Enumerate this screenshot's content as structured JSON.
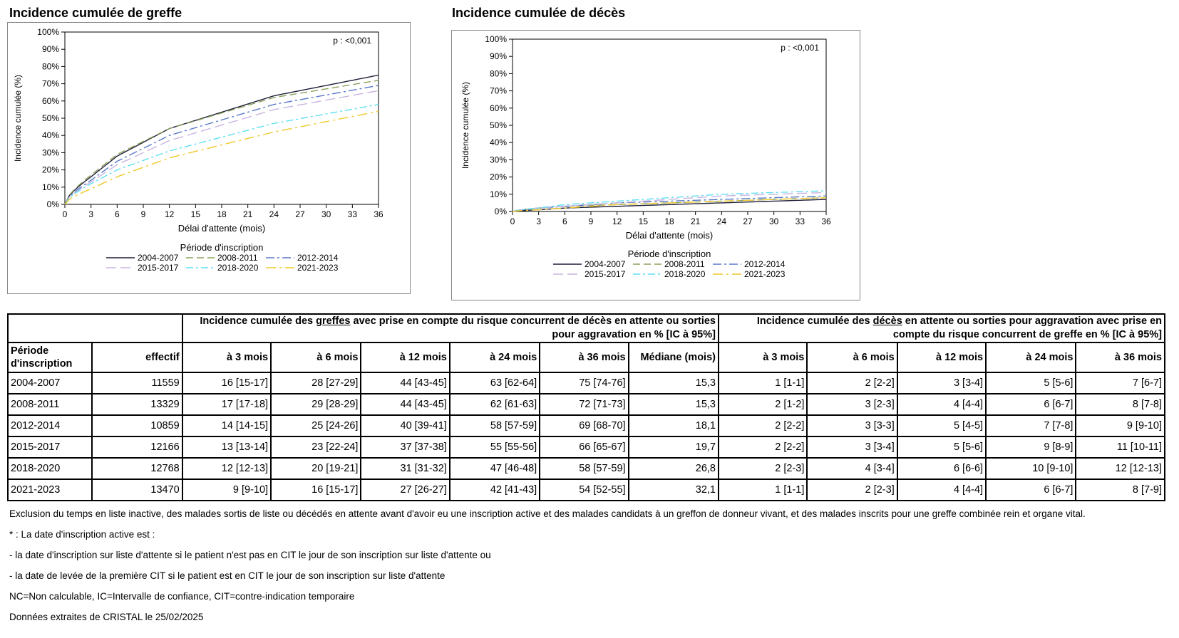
{
  "chart_data": [
    {
      "type": "line",
      "title": "Incidence cumulée de greffe",
      "xlabel": "Délai d'attente (mois)",
      "ylabel": "Incidence cumulée (%)",
      "xlim": [
        0,
        36
      ],
      "ylim": [
        0,
        100
      ],
      "x_ticks": [
        "0",
        "3",
        "6",
        "9",
        "12",
        "15",
        "18",
        "21",
        "24",
        "27",
        "30",
        "33",
        "36"
      ],
      "y_ticks": [
        "0%",
        "10%",
        "20%",
        "30%",
        "40%",
        "50%",
        "60%",
        "70%",
        "80%",
        "90%",
        "100%"
      ],
      "annotation": "p : <0,001",
      "legend_title": "Période d'inscription",
      "x": [
        0,
        3,
        6,
        12,
        24,
        36
      ],
      "series": [
        {
          "name": "2004-2007",
          "values": [
            0,
            16,
            28,
            44,
            63,
            75
          ]
        },
        {
          "name": "2008-2011",
          "values": [
            0,
            17,
            29,
            44,
            62,
            72
          ]
        },
        {
          "name": "2012-2014",
          "values": [
            0,
            14,
            25,
            40,
            58,
            69
          ]
        },
        {
          "name": "2015-2017",
          "values": [
            0,
            13,
            23,
            37,
            55,
            66
          ]
        },
        {
          "name": "2018-2020",
          "values": [
            0,
            12,
            20,
            31,
            47,
            58
          ]
        },
        {
          "name": "2021-2023",
          "values": [
            0,
            9,
            16,
            27,
            42,
            54
          ]
        }
      ]
    },
    {
      "type": "line",
      "title": "Incidence cumulée de décès",
      "xlabel": "Délai d'attente (mois)",
      "ylabel": "Incidence cumulée (%)",
      "xlim": [
        0,
        36
      ],
      "ylim": [
        0,
        100
      ],
      "x_ticks": [
        "0",
        "3",
        "6",
        "9",
        "12",
        "15",
        "18",
        "21",
        "24",
        "27",
        "30",
        "33",
        "36"
      ],
      "y_ticks": [
        "0%",
        "10%",
        "20%",
        "30%",
        "40%",
        "50%",
        "60%",
        "70%",
        "80%",
        "90%",
        "100%"
      ],
      "annotation": "p : <0,001",
      "legend_title": "Période d'inscription",
      "x": [
        0,
        3,
        6,
        12,
        24,
        36
      ],
      "series": [
        {
          "name": "2004-2007",
          "values": [
            0,
            1,
            2,
            3,
            5,
            7
          ]
        },
        {
          "name": "2008-2011",
          "values": [
            0,
            2,
            3,
            4,
            6,
            8
          ]
        },
        {
          "name": "2012-2014",
          "values": [
            0,
            2,
            3,
            5,
            7,
            9
          ]
        },
        {
          "name": "2015-2017",
          "values": [
            0,
            2,
            3,
            5,
            9,
            11
          ]
        },
        {
          "name": "2018-2020",
          "values": [
            0,
            2,
            4,
            6,
            10,
            12
          ]
        },
        {
          "name": "2021-2023",
          "values": [
            0,
            1,
            2,
            4,
            6,
            8
          ]
        }
      ]
    }
  ],
  "series_styles": [
    {
      "color": "#1f1f3a",
      "dash": ""
    },
    {
      "color": "#8aa05a",
      "dash": "10,5"
    },
    {
      "color": "#5878c8",
      "dash": "12,4,3,4"
    },
    {
      "color": "#c8b4e0",
      "dash": "14,6"
    },
    {
      "color": "#5ce0f0",
      "dash": "10,4,3,4"
    },
    {
      "color": "#f0c828",
      "dash": "14,5,3,5"
    }
  ],
  "table": {
    "header_left_1": "Incidence cumulée des ",
    "header_left_u": "greffes",
    "header_left_2": " avec prise en compte du risque concurrent de décès en attente ou sorties pour aggravation en % [IC à 95%]",
    "header_right_1": "Incidence cumulée des ",
    "header_right_u": "décès",
    "header_right_2": " en attente ou sorties pour aggravation avec prise en compte du risque concurrent de greffe en % [IC à 95%]",
    "col_period": "Période d'inscription",
    "col_effectif": "effectif",
    "cols_greffe": [
      "à 3 mois",
      "à 6 mois",
      "à 12 mois",
      "à 24 mois",
      "à 36 mois",
      "Médiane (mois)"
    ],
    "cols_deces": [
      "à 3 mois",
      "à 6 mois",
      "à 12 mois",
      "à 24 mois",
      "à 36 mois"
    ],
    "rows": [
      {
        "period": "2004-2007",
        "effectif": "11559",
        "greffe": [
          "16 [15-17]",
          "28 [27-29]",
          "44 [43-45]",
          "63 [62-64]",
          "75 [74-76]",
          "15,3"
        ],
        "deces": [
          "1 [1-1]",
          "2 [2-2]",
          "3 [3-4]",
          "5 [5-6]",
          "7 [6-7]"
        ]
      },
      {
        "period": "2008-2011",
        "effectif": "13329",
        "greffe": [
          "17 [17-18]",
          "29 [28-29]",
          "44 [43-45]",
          "62 [61-63]",
          "72 [71-73]",
          "15,3"
        ],
        "deces": [
          "2 [1-2]",
          "3 [2-3]",
          "4 [4-4]",
          "6 [6-7]",
          "8 [7-8]"
        ]
      },
      {
        "period": "2012-2014",
        "effectif": "10859",
        "greffe": [
          "14 [14-15]",
          "25 [24-26]",
          "40 [39-41]",
          "58 [57-59]",
          "69 [68-70]",
          "18,1"
        ],
        "deces": [
          "2 [2-2]",
          "3 [3-3]",
          "5 [4-5]",
          "7 [7-8]",
          "9 [9-10]"
        ]
      },
      {
        "period": "2015-2017",
        "effectif": "12166",
        "greffe": [
          "13 [13-14]",
          "23 [22-24]",
          "37 [37-38]",
          "55 [55-56]",
          "66 [65-67]",
          "19,7"
        ],
        "deces": [
          "2 [2-2]",
          "3 [3-4]",
          "5 [5-6]",
          "9 [8-9]",
          "11 [10-11]"
        ]
      },
      {
        "period": "2018-2020",
        "effectif": "12768",
        "greffe": [
          "12 [12-13]",
          "20 [19-21]",
          "31 [31-32]",
          "47 [46-48]",
          "58 [57-59]",
          "26,8"
        ],
        "deces": [
          "2 [2-3]",
          "4 [3-4]",
          "6 [6-6]",
          "10 [9-10]",
          "12 [12-13]"
        ]
      },
      {
        "period": "2021-2023",
        "effectif": "13470",
        "greffe": [
          "9 [9-10]",
          "16 [15-17]",
          "27 [26-27]",
          "42 [41-43]",
          "54 [52-55]",
          "32,1"
        ],
        "deces": [
          "1 [1-1]",
          "2 [2-3]",
          "4 [4-4]",
          "6 [6-7]",
          "8 [7-9]"
        ]
      }
    ]
  },
  "notes": [
    "Exclusion du temps en liste inactive, des malades sortis de liste ou décédés en attente avant d'avoir eu une inscription active et des malades candidats à un greffon de donneur vivant, et des malades inscrits pour une greffe combinée rein et organe vital.",
    "* : La date d'inscription active est :",
    "- la date d'inscription sur liste d'attente si le patient n'est pas en CIT le jour de son inscription sur liste d'attente ou",
    "- la date de levée de la première CIT si le patient est en CIT le jour de son inscription sur liste d'attente",
    "NC=Non calculable, IC=Intervalle de confiance, CIT=contre-indication temporaire",
    "Données extraites de CRISTAL le 25/02/2025"
  ]
}
